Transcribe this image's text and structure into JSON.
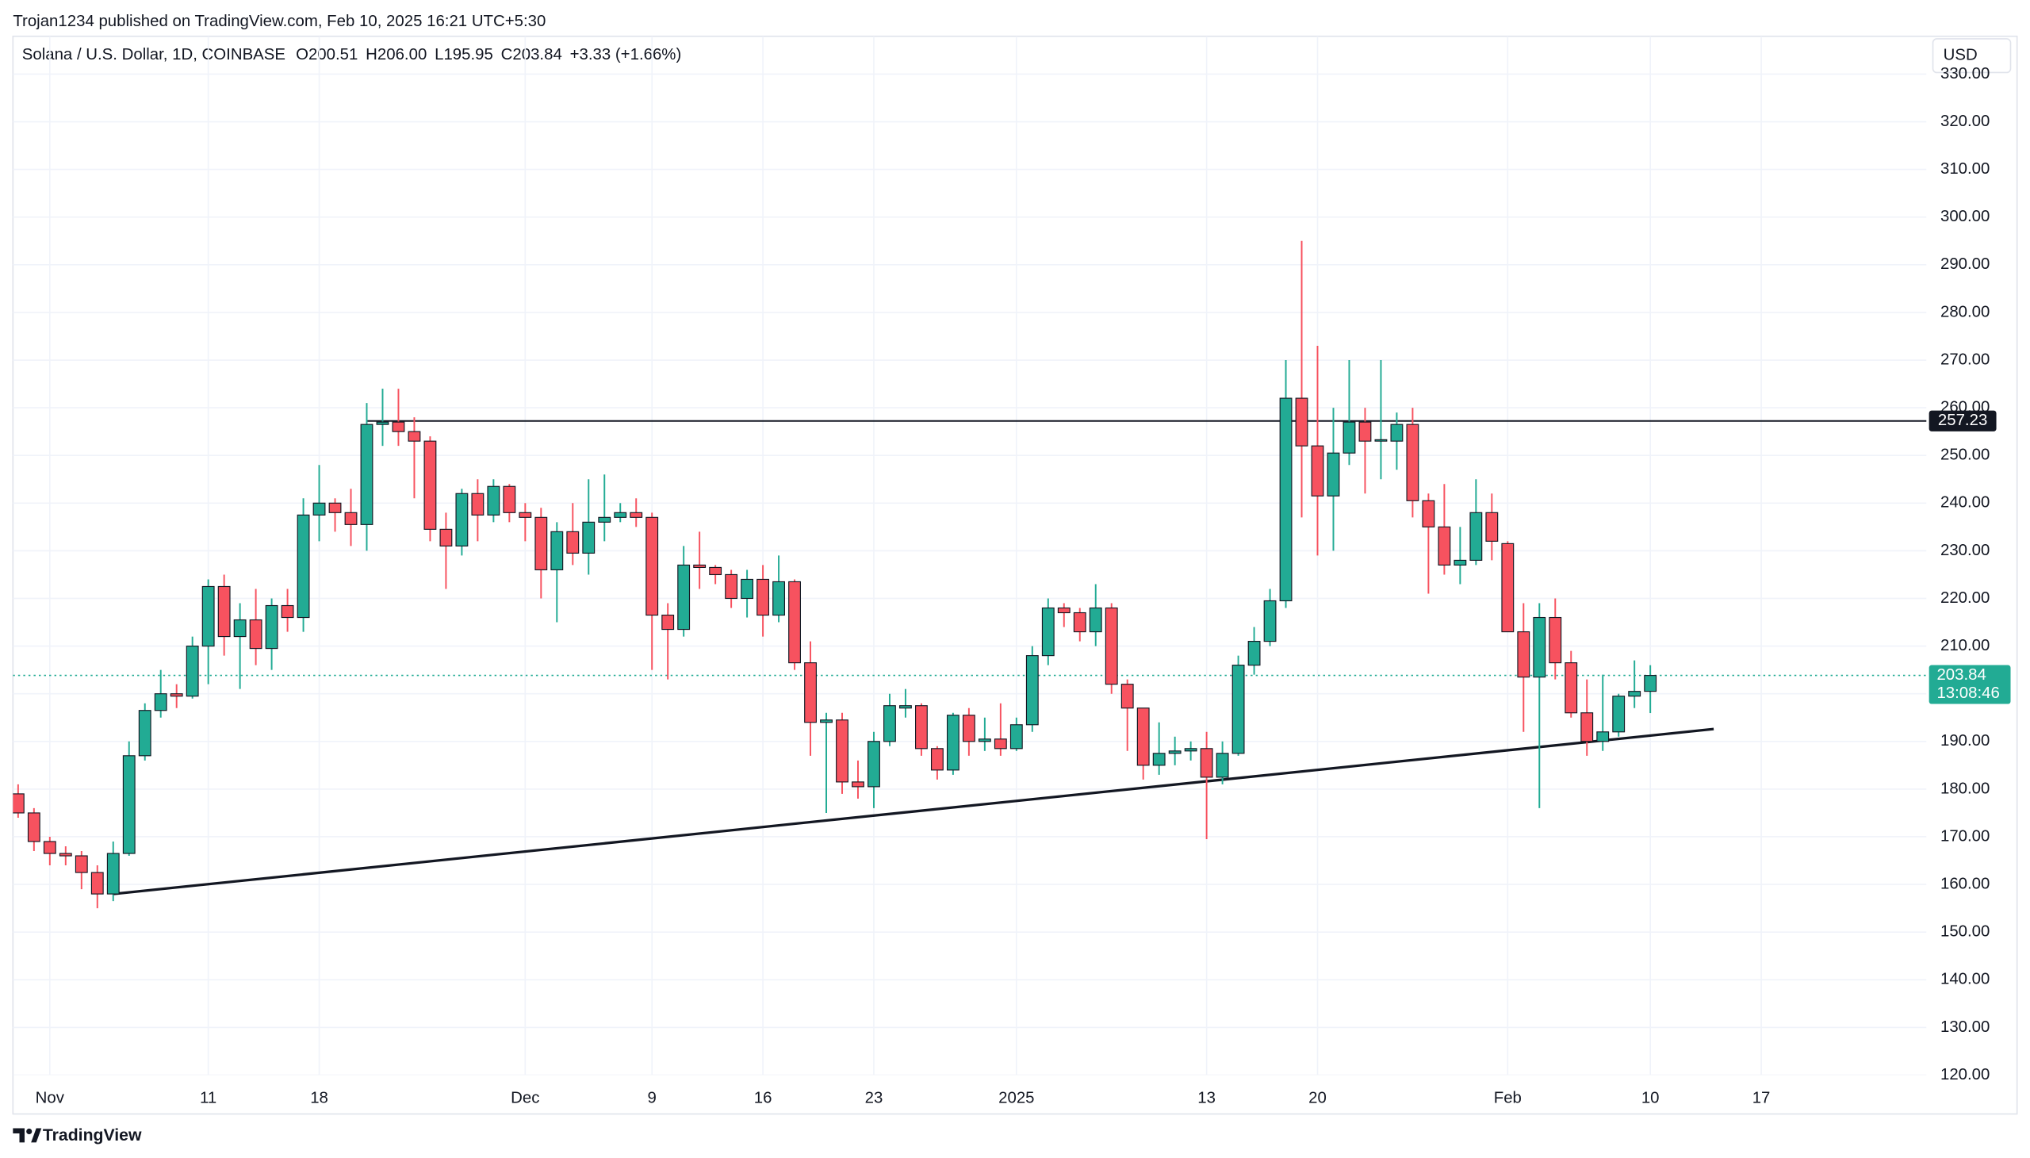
{
  "header": {
    "publisher": "Trojan1234 published on TradingView.com, Feb 10, 2025 16:21 UTC+5:30",
    "symbol": "Solana / U.S. Dollar, 1D, COINBASE",
    "open": "O200.51",
    "high": "H206.00",
    "low": "L195.95",
    "close": "C203.84",
    "change": "+3.33 (+1.66%)",
    "currency": "USD"
  },
  "footer": {
    "brand": "TradingView"
  },
  "chart_data": {
    "type": "candlestick",
    "categories": [
      null,
      null,
      "Nov",
      null,
      null,
      null,
      null,
      null,
      null,
      null,
      null,
      null,
      "11",
      null,
      null,
      null,
      null,
      null,
      null,
      "18",
      null,
      null,
      null,
      null,
      null,
      null,
      null,
      null,
      null,
      null,
      null,
      null,
      "Dec",
      null,
      null,
      null,
      null,
      null,
      null,
      null,
      "9",
      null,
      null,
      null,
      null,
      null,
      null,
      "16",
      null,
      null,
      null,
      null,
      null,
      null,
      "23",
      null,
      null,
      null,
      null,
      null,
      null,
      null,
      null,
      "2025",
      null,
      null,
      null,
      null,
      null,
      null,
      null,
      null,
      null,
      null,
      null,
      "13",
      null,
      null,
      null,
      null,
      null,
      null,
      "20",
      null,
      null,
      null,
      null,
      null,
      null,
      null,
      null,
      null,
      null,
      null,
      "Feb",
      null,
      null,
      null,
      null,
      null,
      null,
      null,
      null,
      "10",
      null,
      null,
      null,
      null,
      null,
      null,
      "17"
    ],
    "series": [
      {
        "up_color": "#22ab94",
        "down_color": "#f7525f",
        "border_color": "#131722",
        "open": [
          179,
          175,
          169,
          166.5,
          166,
          162.5,
          158,
          166.5,
          187,
          196.5,
          200,
          199.5,
          210,
          222.5,
          212,
          215.5,
          209.5,
          218.5,
          216,
          237.5,
          240,
          238,
          235.5,
          256.5,
          257,
          255,
          253,
          234.5,
          231,
          242,
          237.5,
          243.5,
          238,
          237,
          226,
          234,
          229.5,
          236,
          237,
          238,
          237,
          216.5,
          213.5,
          227,
          226.5,
          225,
          220,
          224,
          216.5,
          223.5,
          206.5,
          194,
          194.5,
          181.5,
          180.5,
          190,
          197,
          197.5,
          188.5,
          184,
          195.5,
          190,
          190.5,
          188.5,
          193.5,
          208,
          218,
          217,
          213,
          218,
          202,
          197,
          185,
          187.5,
          188,
          188.5,
          182.5,
          187.5,
          206,
          211,
          219.5,
          262,
          252,
          241.5,
          250.5,
          257,
          253,
          253,
          256.5,
          240.5,
          235,
          227,
          228,
          238,
          231.5,
          213,
          203.5,
          216,
          206.5,
          196,
          190,
          192,
          199.5,
          200.51,
          null,
          null,
          null,
          null,
          null,
          null,
          null
        ],
        "high": [
          181,
          176,
          170,
          168,
          167,
          164,
          169,
          190,
          198,
          205,
          202,
          212,
          224,
          225,
          219,
          222,
          220,
          222,
          241,
          248,
          241,
          243,
          261,
          264,
          264,
          258,
          254,
          238,
          243,
          245,
          245,
          244,
          240,
          239,
          236,
          240,
          245,
          246,
          240,
          241,
          238,
          219,
          231,
          234,
          227,
          226,
          226,
          227,
          229,
          224,
          211,
          196,
          196,
          186,
          192,
          200,
          201,
          198,
          189,
          196,
          197,
          195,
          198,
          195,
          210,
          220,
          219,
          218,
          223,
          219,
          203,
          197,
          194,
          191,
          190,
          192,
          190,
          208,
          214,
          222,
          270,
          295,
          273,
          260,
          270,
          260,
          270,
          259,
          260,
          242,
          244,
          235,
          245,
          242,
          232,
          219,
          219,
          220,
          209,
          203,
          204,
          200,
          207,
          206,
          null,
          null,
          null,
          null,
          null,
          null,
          null
        ],
        "low": [
          174,
          167,
          164,
          164,
          159,
          155,
          156.5,
          166,
          186,
          195,
          197,
          199,
          202,
          208,
          201,
          206,
          205,
          213,
          213,
          232,
          234,
          231,
          230,
          252,
          252,
          241,
          232,
          222,
          229,
          232,
          236,
          236,
          232,
          220,
          215,
          227,
          225,
          232,
          236,
          235,
          205,
          203,
          212,
          222,
          223,
          218,
          216,
          212,
          215,
          205,
          187,
          175,
          179,
          178,
          176,
          189,
          195,
          187,
          182,
          183,
          187,
          188,
          187,
          188,
          192,
          206,
          214,
          211,
          210,
          200,
          188,
          182,
          183,
          185,
          186,
          169.5,
          181,
          187,
          204,
          210,
          218,
          237,
          229,
          230,
          248,
          242,
          245,
          247,
          237,
          221,
          225,
          223,
          227,
          228,
          213,
          192,
          176,
          203,
          195,
          187,
          188,
          191,
          197,
          195.95,
          null,
          null,
          null,
          null,
          null,
          null,
          null
        ],
        "close": [
          175,
          169,
          166.5,
          166,
          162.5,
          158,
          166.5,
          187,
          196.5,
          200,
          199.5,
          210,
          222.5,
          212,
          215.5,
          209.5,
          218.5,
          216,
          237.5,
          240,
          238,
          235.5,
          256.5,
          257,
          255,
          253,
          234.5,
          231,
          242,
          237.5,
          243.5,
          238,
          237,
          226,
          234,
          229.5,
          236,
          237,
          238,
          237,
          216.5,
          213.5,
          227,
          226.5,
          225,
          220,
          224,
          216.5,
          223.5,
          206.5,
          194,
          194.5,
          181.5,
          180.5,
          190,
          197.5,
          197.5,
          188.5,
          184,
          195.5,
          190,
          190.5,
          188.5,
          193.5,
          208,
          218,
          217,
          213,
          218,
          202,
          197,
          185,
          187.5,
          188,
          188.5,
          182.5,
          187.5,
          206,
          211,
          219.5,
          262,
          252,
          241.5,
          250.5,
          257,
          253,
          253.3,
          256.5,
          240.5,
          235,
          227,
          228,
          238,
          232,
          213,
          203.5,
          216,
          206.5,
          196,
          190,
          192,
          199.5,
          200.5,
          203.84,
          null,
          null,
          null,
          null,
          null,
          null,
          null
        ]
      }
    ],
    "ylim": [
      120,
      330
    ],
    "yticks": [
      {
        "value": 120,
        "label": "120.00"
      },
      {
        "value": 130,
        "label": "130.00"
      },
      {
        "value": 140,
        "label": "140.00"
      },
      {
        "value": 150,
        "label": "150.00"
      },
      {
        "value": 160,
        "label": "160.00"
      },
      {
        "value": 170,
        "label": "170.00"
      },
      {
        "value": 180,
        "label": "180.00"
      },
      {
        "value": 190,
        "label": "190.00"
      },
      {
        "value": 200,
        "label": "200.00"
      },
      {
        "value": 210,
        "label": "210.00"
      },
      {
        "value": 220,
        "label": "220.00"
      },
      {
        "value": 230,
        "label": "230.00"
      },
      {
        "value": 240,
        "label": "240.00"
      },
      {
        "value": 250,
        "label": "250.00"
      },
      {
        "value": 260,
        "label": "260.00"
      },
      {
        "value": 270,
        "label": "270.00"
      },
      {
        "value": 280,
        "label": "280.00"
      },
      {
        "value": 290,
        "label": "290.00"
      },
      {
        "value": 300,
        "label": "300.00"
      },
      {
        "value": 310,
        "label": "310.00"
      },
      {
        "value": 320,
        "label": "320.00"
      },
      {
        "value": 330,
        "label": "330.00"
      }
    ],
    "grid": true,
    "hline": {
      "value": 257.23,
      "start_index": 22,
      "color": "#131722"
    },
    "trendline": {
      "x_index": [
        6,
        107
      ],
      "values": [
        158,
        192.6
      ],
      "color": "#131722"
    },
    "last_price": {
      "value": 203.84,
      "countdown": "13:08:46",
      "color": "#22ab94"
    }
  }
}
